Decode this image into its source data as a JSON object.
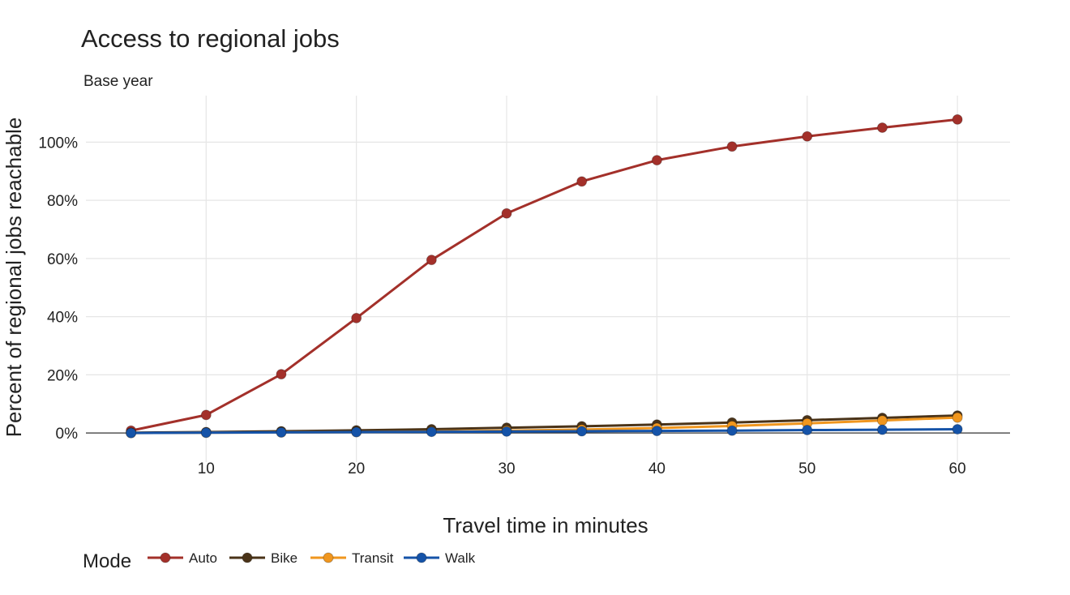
{
  "chart_data": {
    "type": "line",
    "title": "Access to regional jobs",
    "subtitle": "Base year",
    "xlabel": "Travel time in minutes",
    "ylabel": "Percent of regional jobs reachable",
    "x": [
      5,
      10,
      15,
      20,
      25,
      30,
      35,
      40,
      45,
      50,
      55,
      60
    ],
    "xlim": [
      2,
      63.5
    ],
    "ylim": [
      -10,
      116
    ],
    "x_ticks": [
      10,
      20,
      30,
      40,
      50,
      60
    ],
    "x_tick_labels": [
      "10",
      "20",
      "30",
      "40",
      "50",
      "60"
    ],
    "y_ticks": [
      0,
      20,
      40,
      60,
      80,
      100
    ],
    "y_tick_labels": [
      "0%",
      "20%",
      "40%",
      "60%",
      "80%",
      "100%"
    ],
    "grid": true,
    "legend_title": "Mode",
    "legend_position": "bottom-left",
    "series": [
      {
        "name": "Auto",
        "color": "#a3302a",
        "values": [
          0.8,
          6.2,
          20.2,
          39.5,
          59.5,
          75.5,
          86.5,
          93.8,
          98.5,
          102.0,
          105.0,
          107.8
        ]
      },
      {
        "name": "Bike",
        "color": "#4a3318",
        "values": [
          0.1,
          0.3,
          0.6,
          0.9,
          1.3,
          1.8,
          2.3,
          2.9,
          3.6,
          4.4,
          5.2,
          6.0
        ]
      },
      {
        "name": "Transit",
        "color": "#f0961e",
        "values": [
          0.0,
          0.1,
          0.2,
          0.3,
          0.5,
          0.8,
          1.2,
          1.7,
          2.4,
          3.3,
          4.3,
          5.3
        ]
      },
      {
        "name": "Walk",
        "color": "#1553a8",
        "values": [
          0.0,
          0.1,
          0.2,
          0.3,
          0.4,
          0.5,
          0.6,
          0.7,
          0.8,
          1.0,
          1.1,
          1.3
        ]
      }
    ]
  }
}
